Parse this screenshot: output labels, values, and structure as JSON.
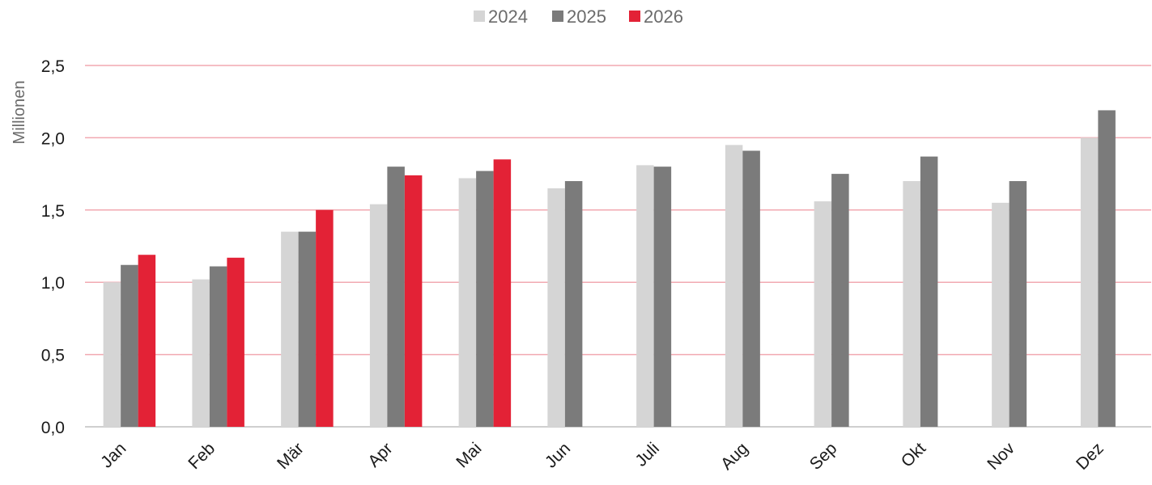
{
  "chart_data": {
    "type": "bar",
    "title": "",
    "xlabel": "",
    "ylabel": "Millionen",
    "ylim": [
      0,
      2.5
    ],
    "yticks": [
      "0,0",
      "0,5",
      "1,0",
      "1,5",
      "2,0",
      "2,5"
    ],
    "grid": true,
    "legend_position": "top-center",
    "categories": [
      "Jan",
      "Feb",
      "Mär",
      "Apr",
      "Mai",
      "Jun",
      "Juli",
      "Aug",
      "Sep",
      "Okt",
      "Nov",
      "Dez"
    ],
    "series": [
      {
        "name": "2024",
        "color": "#d5d5d5",
        "values": [
          1.0,
          1.02,
          1.35,
          1.54,
          1.72,
          1.65,
          1.81,
          1.95,
          1.56,
          1.7,
          1.55,
          2.0
        ]
      },
      {
        "name": "2025",
        "color": "#7b7b7b",
        "values": [
          1.12,
          1.11,
          1.35,
          1.8,
          1.77,
          1.7,
          1.8,
          1.91,
          1.75,
          1.87,
          1.7,
          2.19
        ]
      },
      {
        "name": "2026",
        "color": "#e32236",
        "values": [
          1.19,
          1.17,
          1.5,
          1.74,
          1.85,
          null,
          null,
          null,
          null,
          null,
          null,
          null
        ]
      }
    ],
    "colors": {
      "gridline": "#f2a9b1",
      "axis": "#bfbfbf",
      "text": "#1a1a1a",
      "muted_text": "#6b6b6b"
    }
  }
}
